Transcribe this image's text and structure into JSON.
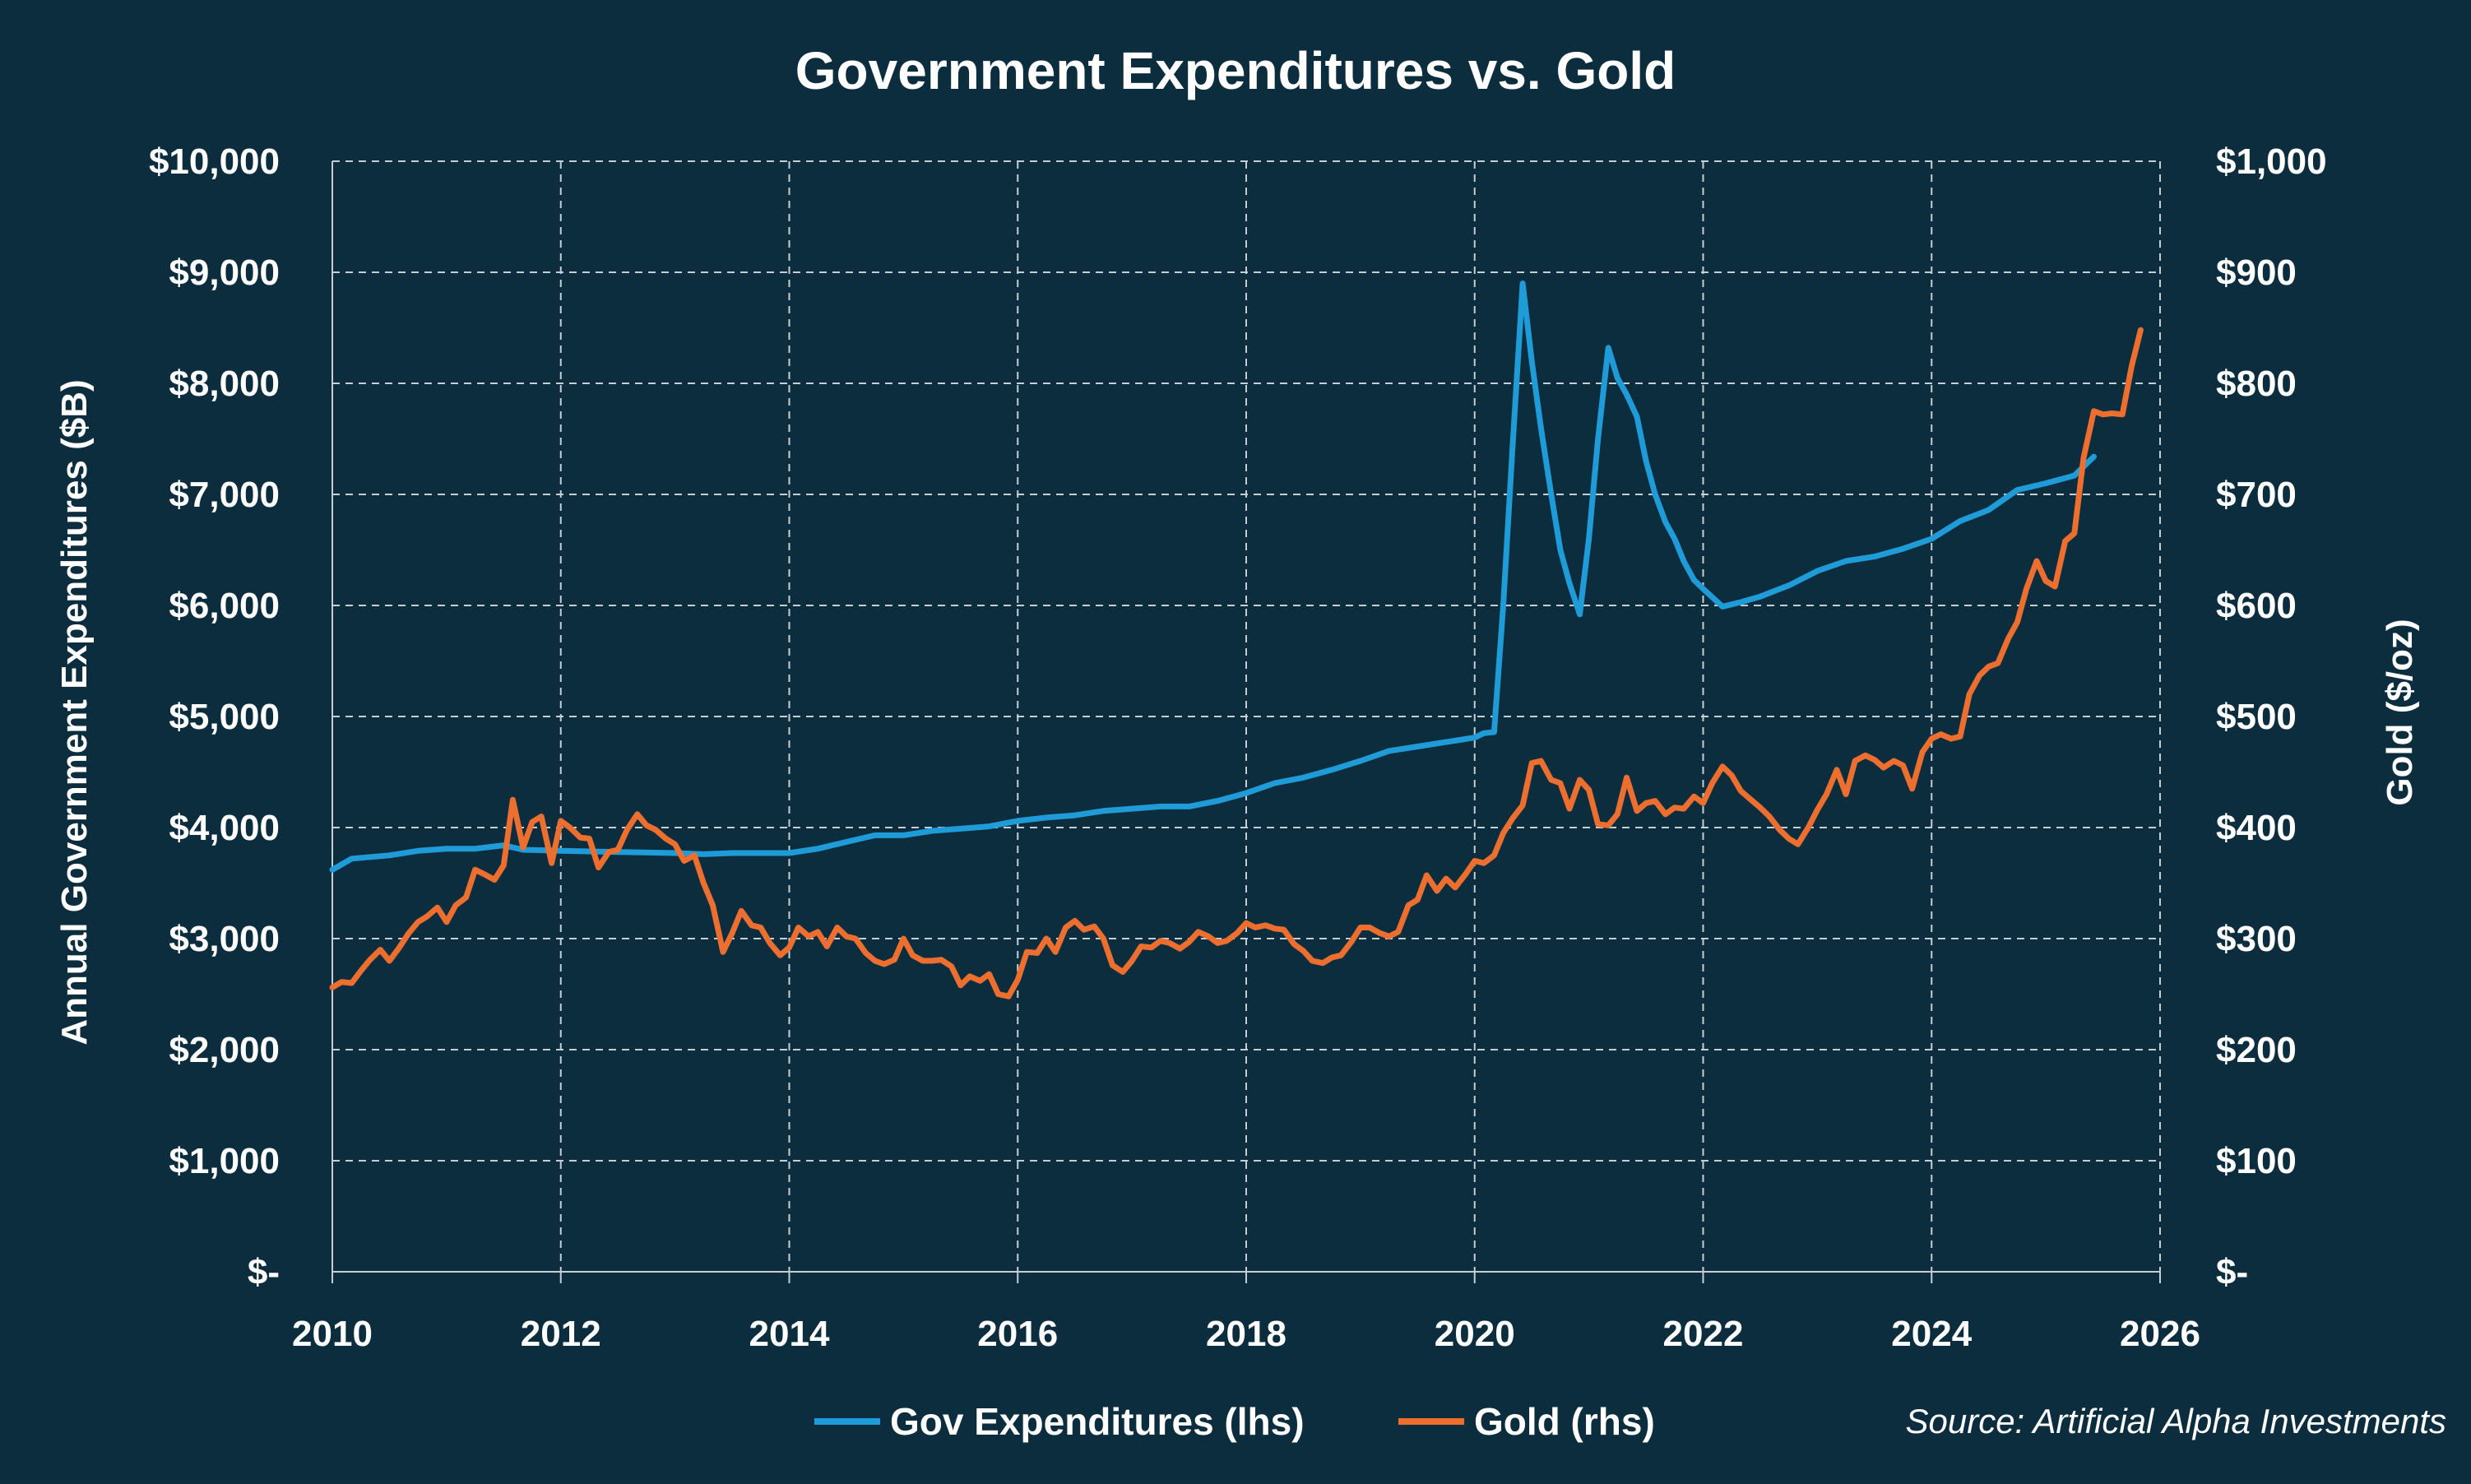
{
  "chart_data": {
    "type": "line",
    "title": "Government Expenditures vs. Gold",
    "xlabel": "",
    "ylabel_left": "Annual Government Expenditures ($B)",
    "ylabel_right": "Gold ($/oz)",
    "xlim": [
      2010,
      2026
    ],
    "ylim_left": [
      0,
      10000
    ],
    "ylim_right": [
      0,
      1000
    ],
    "grid": true,
    "legend_position": "bottom-center",
    "x_ticks": [
      "2010",
      "2012",
      "2014",
      "2016",
      "2018",
      "2020",
      "2022",
      "2024",
      "2026"
    ],
    "y_ticks_left": [
      "$-",
      "$1,000",
      "$2,000",
      "$3,000",
      "$4,000",
      "$5,000",
      "$6,000",
      "$7,000",
      "$8,000",
      "$9,000",
      "$10,000"
    ],
    "y_ticks_right": [
      "$-",
      "$100",
      "$200",
      "$300",
      "$400",
      "$500",
      "$600",
      "$700",
      "$800",
      "$900",
      "$1,000"
    ],
    "series": [
      {
        "name": "Gov Expenditures (lhs)",
        "axis": "left",
        "color": "#1f9bd7",
        "points": [
          [
            2010.0,
            3620
          ],
          [
            2010.17,
            3720
          ],
          [
            2010.5,
            3750
          ],
          [
            2010.75,
            3790
          ],
          [
            2011.0,
            3810
          ],
          [
            2011.25,
            3810
          ],
          [
            2011.5,
            3840
          ],
          [
            2011.67,
            3800
          ],
          [
            2012.0,
            3790
          ],
          [
            2012.5,
            3780
          ],
          [
            2013.0,
            3770
          ],
          [
            2013.25,
            3760
          ],
          [
            2013.5,
            3770
          ],
          [
            2014.0,
            3770
          ],
          [
            2014.25,
            3810
          ],
          [
            2014.5,
            3870
          ],
          [
            2014.75,
            3930
          ],
          [
            2015.0,
            3930
          ],
          [
            2015.25,
            3970
          ],
          [
            2015.5,
            3990
          ],
          [
            2015.75,
            4010
          ],
          [
            2016.0,
            4060
          ],
          [
            2016.25,
            4090
          ],
          [
            2016.5,
            4110
          ],
          [
            2016.75,
            4150
          ],
          [
            2017.0,
            4170
          ],
          [
            2017.25,
            4190
          ],
          [
            2017.5,
            4190
          ],
          [
            2017.75,
            4240
          ],
          [
            2018.0,
            4310
          ],
          [
            2018.25,
            4400
          ],
          [
            2018.5,
            4450
          ],
          [
            2018.75,
            4520
          ],
          [
            2019.0,
            4600
          ],
          [
            2019.25,
            4690
          ],
          [
            2019.5,
            4730
          ],
          [
            2019.75,
            4770
          ],
          [
            2020.0,
            4810
          ],
          [
            2020.08,
            4850
          ],
          [
            2020.17,
            4860
          ],
          [
            2020.25,
            6000
          ],
          [
            2020.33,
            7400
          ],
          [
            2020.42,
            8900
          ],
          [
            2020.5,
            8200
          ],
          [
            2020.58,
            7600
          ],
          [
            2020.67,
            7000
          ],
          [
            2020.75,
            6500
          ],
          [
            2020.83,
            6200
          ],
          [
            2020.92,
            5920
          ],
          [
            2021.0,
            6600
          ],
          [
            2021.08,
            7500
          ],
          [
            2021.17,
            8320
          ],
          [
            2021.25,
            8050
          ],
          [
            2021.33,
            7900
          ],
          [
            2021.42,
            7700
          ],
          [
            2021.5,
            7300
          ],
          [
            2021.58,
            7000
          ],
          [
            2021.67,
            6750
          ],
          [
            2021.75,
            6600
          ],
          [
            2021.83,
            6400
          ],
          [
            2021.92,
            6230
          ],
          [
            2022.0,
            6150
          ],
          [
            2022.17,
            5990
          ],
          [
            2022.33,
            6030
          ],
          [
            2022.5,
            6080
          ],
          [
            2022.75,
            6180
          ],
          [
            2023.0,
            6310
          ],
          [
            2023.25,
            6400
          ],
          [
            2023.5,
            6440
          ],
          [
            2023.75,
            6510
          ],
          [
            2024.0,
            6600
          ],
          [
            2024.25,
            6760
          ],
          [
            2024.5,
            6860
          ],
          [
            2024.75,
            7040
          ],
          [
            2025.0,
            7100
          ],
          [
            2025.25,
            7170
          ],
          [
            2025.42,
            7340
          ]
        ]
      },
      {
        "name": "Gold (rhs)",
        "axis": "right",
        "color": "#ec6f2f",
        "points": [
          [
            2010.0,
            256
          ],
          [
            2010.08,
            261
          ],
          [
            2010.17,
            260
          ],
          [
            2010.25,
            271
          ],
          [
            2010.33,
            281
          ],
          [
            2010.42,
            290
          ],
          [
            2010.5,
            280
          ],
          [
            2010.58,
            291
          ],
          [
            2010.67,
            305
          ],
          [
            2010.75,
            315
          ],
          [
            2010.83,
            320
          ],
          [
            2010.92,
            328
          ],
          [
            2011.0,
            315
          ],
          [
            2011.08,
            330
          ],
          [
            2011.17,
            337
          ],
          [
            2011.25,
            362
          ],
          [
            2011.33,
            358
          ],
          [
            2011.42,
            353
          ],
          [
            2011.5,
            366
          ],
          [
            2011.58,
            425
          ],
          [
            2011.67,
            382
          ],
          [
            2011.75,
            405
          ],
          [
            2011.83,
            410
          ],
          [
            2011.92,
            368
          ],
          [
            2012.0,
            406
          ],
          [
            2012.08,
            400
          ],
          [
            2012.17,
            391
          ],
          [
            2012.25,
            390
          ],
          [
            2012.33,
            364
          ],
          [
            2012.42,
            378
          ],
          [
            2012.5,
            380
          ],
          [
            2012.58,
            398
          ],
          [
            2012.67,
            412
          ],
          [
            2012.75,
            402
          ],
          [
            2012.83,
            398
          ],
          [
            2012.92,
            390
          ],
          [
            2013.0,
            385
          ],
          [
            2013.08,
            370
          ],
          [
            2013.17,
            375
          ],
          [
            2013.25,
            350
          ],
          [
            2013.33,
            330
          ],
          [
            2013.42,
            288
          ],
          [
            2013.5,
            305
          ],
          [
            2013.58,
            325
          ],
          [
            2013.67,
            312
          ],
          [
            2013.75,
            310
          ],
          [
            2013.83,
            296
          ],
          [
            2013.92,
            285
          ],
          [
            2014.0,
            292
          ],
          [
            2014.08,
            310
          ],
          [
            2014.17,
            302
          ],
          [
            2014.25,
            306
          ],
          [
            2014.33,
            293
          ],
          [
            2014.42,
            310
          ],
          [
            2014.5,
            302
          ],
          [
            2014.58,
            300
          ],
          [
            2014.67,
            287
          ],
          [
            2014.75,
            280
          ],
          [
            2014.83,
            277
          ],
          [
            2014.92,
            281
          ],
          [
            2015.0,
            300
          ],
          [
            2015.08,
            285
          ],
          [
            2015.17,
            280
          ],
          [
            2015.25,
            280
          ],
          [
            2015.33,
            281
          ],
          [
            2015.42,
            275
          ],
          [
            2015.5,
            258
          ],
          [
            2015.58,
            266
          ],
          [
            2015.67,
            262
          ],
          [
            2015.75,
            268
          ],
          [
            2015.83,
            250
          ],
          [
            2015.92,
            248
          ],
          [
            2016.0,
            263
          ],
          [
            2016.08,
            288
          ],
          [
            2016.17,
            287
          ],
          [
            2016.25,
            300
          ],
          [
            2016.33,
            288
          ],
          [
            2016.42,
            310
          ],
          [
            2016.5,
            316
          ],
          [
            2016.58,
            308
          ],
          [
            2016.67,
            311
          ],
          [
            2016.75,
            300
          ],
          [
            2016.83,
            276
          ],
          [
            2016.92,
            270
          ],
          [
            2017.0,
            280
          ],
          [
            2017.08,
            293
          ],
          [
            2017.17,
            292
          ],
          [
            2017.25,
            298
          ],
          [
            2017.33,
            296
          ],
          [
            2017.42,
            291
          ],
          [
            2017.5,
            297
          ],
          [
            2017.58,
            306
          ],
          [
            2017.67,
            302
          ],
          [
            2017.75,
            296
          ],
          [
            2017.83,
            298
          ],
          [
            2017.92,
            305
          ],
          [
            2018.0,
            314
          ],
          [
            2018.08,
            310
          ],
          [
            2018.17,
            312
          ],
          [
            2018.25,
            309
          ],
          [
            2018.33,
            308
          ],
          [
            2018.42,
            295
          ],
          [
            2018.5,
            289
          ],
          [
            2018.58,
            280
          ],
          [
            2018.67,
            278
          ],
          [
            2018.75,
            283
          ],
          [
            2018.83,
            285
          ],
          [
            2018.92,
            297
          ],
          [
            2019.0,
            310
          ],
          [
            2019.08,
            310
          ],
          [
            2019.17,
            305
          ],
          [
            2019.25,
            302
          ],
          [
            2019.33,
            306
          ],
          [
            2019.42,
            330
          ],
          [
            2019.5,
            335
          ],
          [
            2019.58,
            357
          ],
          [
            2019.67,
            343
          ],
          [
            2019.75,
            354
          ],
          [
            2019.83,
            346
          ],
          [
            2019.92,
            358
          ],
          [
            2020.0,
            370
          ],
          [
            2020.08,
            368
          ],
          [
            2020.17,
            375
          ],
          [
            2020.25,
            395
          ],
          [
            2020.33,
            408
          ],
          [
            2020.42,
            420
          ],
          [
            2020.5,
            458
          ],
          [
            2020.58,
            460
          ],
          [
            2020.67,
            443
          ],
          [
            2020.75,
            440
          ],
          [
            2020.83,
            417
          ],
          [
            2020.92,
            443
          ],
          [
            2021.0,
            434
          ],
          [
            2021.08,
            403
          ],
          [
            2021.17,
            402
          ],
          [
            2021.25,
            412
          ],
          [
            2021.33,
            445
          ],
          [
            2021.42,
            415
          ],
          [
            2021.5,
            422
          ],
          [
            2021.58,
            424
          ],
          [
            2021.67,
            412
          ],
          [
            2021.75,
            418
          ],
          [
            2021.83,
            417
          ],
          [
            2021.92,
            428
          ],
          [
            2022.0,
            422
          ],
          [
            2022.08,
            440
          ],
          [
            2022.17,
            455
          ],
          [
            2022.25,
            447
          ],
          [
            2022.33,
            433
          ],
          [
            2022.42,
            425
          ],
          [
            2022.5,
            418
          ],
          [
            2022.58,
            410
          ],
          [
            2022.67,
            398
          ],
          [
            2022.75,
            390
          ],
          [
            2022.83,
            385
          ],
          [
            2022.92,
            400
          ],
          [
            2023.0,
            416
          ],
          [
            2023.08,
            430
          ],
          [
            2023.17,
            452
          ],
          [
            2023.25,
            430
          ],
          [
            2023.33,
            460
          ],
          [
            2023.42,
            465
          ],
          [
            2023.5,
            461
          ],
          [
            2023.58,
            454
          ],
          [
            2023.67,
            460
          ],
          [
            2023.75,
            456
          ],
          [
            2023.83,
            435
          ],
          [
            2023.92,
            468
          ],
          [
            2024.0,
            480
          ],
          [
            2024.08,
            484
          ],
          [
            2024.17,
            480
          ],
          [
            2024.25,
            482
          ],
          [
            2024.33,
            520
          ],
          [
            2024.42,
            537
          ],
          [
            2024.5,
            545
          ],
          [
            2024.58,
            548
          ],
          [
            2024.67,
            570
          ],
          [
            2024.75,
            585
          ],
          [
            2024.83,
            615
          ],
          [
            2024.92,
            640
          ],
          [
            2025.0,
            622
          ],
          [
            2025.08,
            617
          ],
          [
            2025.17,
            658
          ],
          [
            2025.25,
            665
          ],
          [
            2025.33,
            733
          ],
          [
            2025.42,
            775
          ],
          [
            2025.5,
            772
          ],
          [
            2025.58,
            773
          ],
          [
            2025.67,
            772
          ],
          [
            2025.75,
            815
          ],
          [
            2025.83,
            848
          ]
        ]
      }
    ],
    "source": "Source: Artificial Alpha Investments"
  },
  "colors": {
    "background": "#0c2d3e",
    "text": "#ffffff",
    "grid": "#c5ced3"
  }
}
